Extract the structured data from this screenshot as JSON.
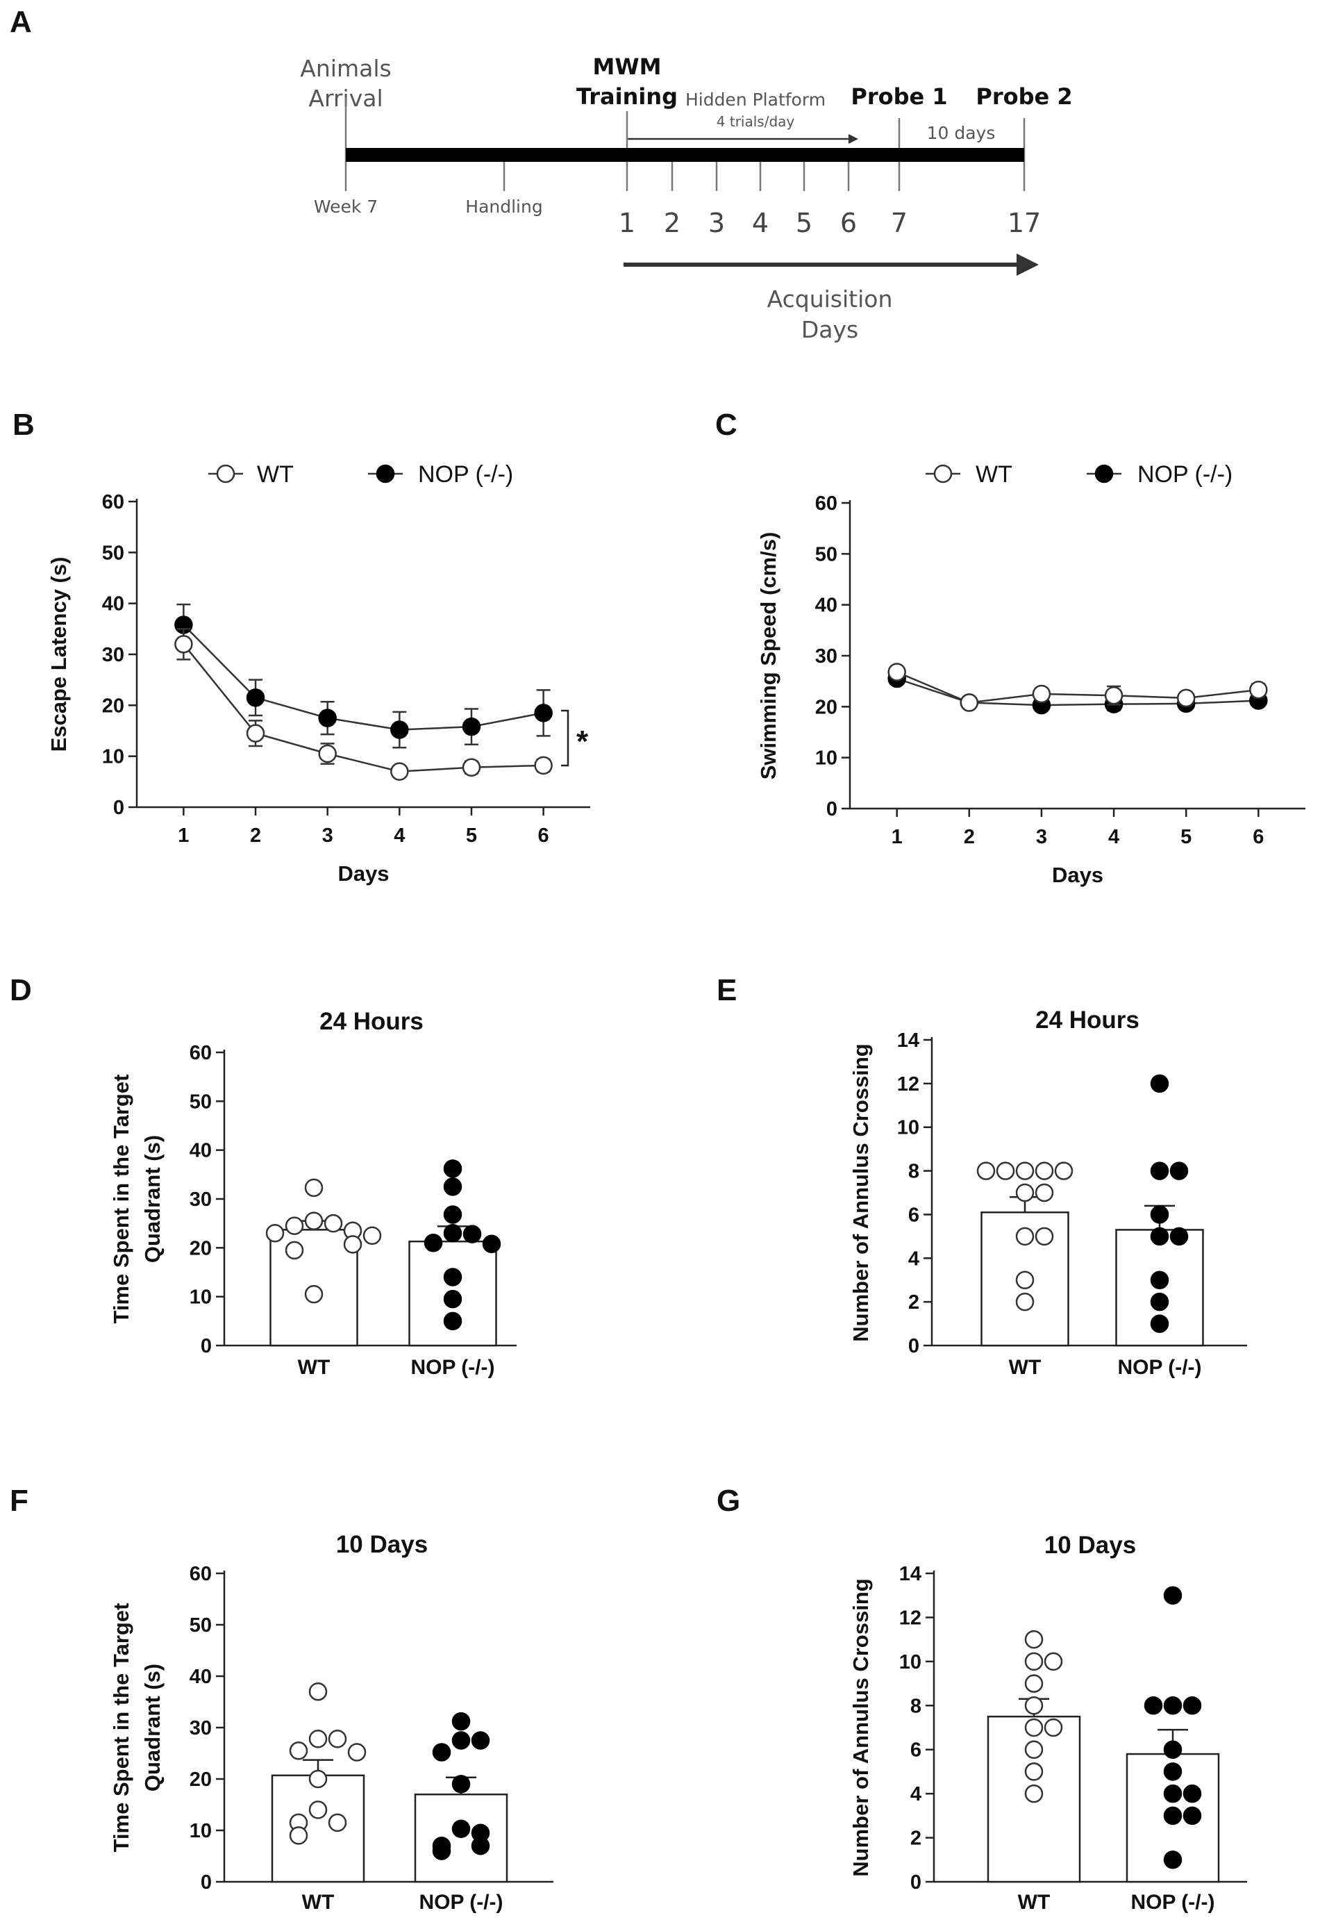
{
  "panel_labels": [
    "A",
    "B",
    "C",
    "D",
    "E",
    "F",
    "G"
  ],
  "timeline": {
    "animals_arrival": [
      "Animals",
      "Arrival"
    ],
    "mwm_training": [
      "MWM",
      "Training"
    ],
    "hidden_platform": "Hidden Platform",
    "trials_per_day": "4 trials/day",
    "probe1": "Probe 1",
    "probe2": "Probe 2",
    "ten_days": "10 days",
    "week7": "Week 7",
    "handling": "Handling",
    "day_ticks": [
      "1",
      "2",
      "3",
      "4",
      "5",
      "6",
      "7",
      "17"
    ],
    "acquisition": [
      "Acquisition",
      "Days"
    ]
  },
  "legend": {
    "wt": "WT",
    "nop": "NOP (-/-)"
  },
  "colors": {
    "nop_fill": "#000000",
    "wt_fill": "#ffffff",
    "line": "#333333"
  },
  "chart_data": [
    {
      "panel": "B",
      "type": "line",
      "ylabel": "Escape Latency (s)",
      "xlabel": "Days",
      "x": [
        1,
        2,
        3,
        4,
        5,
        6
      ],
      "ylim": [
        0,
        60
      ],
      "yticks": [
        0,
        10,
        20,
        30,
        40,
        50,
        60
      ],
      "significance": "*",
      "series": [
        {
          "name": "WT",
          "values": [
            32,
            14.5,
            10.5,
            7,
            7.8,
            8.2
          ],
          "sem": [
            3,
            2.5,
            2,
            0.8,
            1.2,
            1.2
          ]
        },
        {
          "name": "NOP (-/-)",
          "values": [
            35.8,
            21.5,
            17.5,
            15.2,
            15.8,
            18.5
          ],
          "sem": [
            4,
            3.5,
            3.2,
            3.5,
            3.5,
            4.5
          ]
        }
      ]
    },
    {
      "panel": "C",
      "type": "line",
      "ylabel": "Swimming Speed (cm/s)",
      "xlabel": "Days",
      "x": [
        1,
        2,
        3,
        4,
        5,
        6
      ],
      "ylim": [
        0,
        60
      ],
      "yticks": [
        0,
        10,
        20,
        30,
        40,
        50,
        60
      ],
      "series": [
        {
          "name": "WT",
          "values": [
            26.8,
            20.8,
            22.5,
            22.2,
            21.7,
            23.3
          ],
          "sem": [
            0.8,
            0.5,
            0.8,
            1.8,
            0.8,
            1.2
          ]
        },
        {
          "name": "NOP (-/-)",
          "values": [
            25.5,
            20.8,
            20.3,
            20.5,
            20.6,
            21.2
          ],
          "sem": [
            0.6,
            0.5,
            0.6,
            1.2,
            0.6,
            0.8
          ]
        }
      ]
    },
    {
      "panel": "D",
      "type": "scatter",
      "title": "24 Hours",
      "ylabel": [
        "Time Spent in the Target",
        "Quadrant (s)"
      ],
      "categories": [
        "WT",
        "NOP (-/-)"
      ],
      "ylim": [
        0,
        60
      ],
      "yticks": [
        0,
        10,
        20,
        30,
        40,
        50,
        60
      ],
      "means": [
        23.7,
        21.3
      ],
      "sem": [
        1.8,
        3.1
      ],
      "points": [
        [
          32.3,
          25.5,
          25.0,
          24.5,
          23.5,
          23.0,
          22.5,
          20.7,
          19.5,
          10.5
        ],
        [
          36.2,
          32.5,
          26.8,
          23.0,
          22.8,
          21.0,
          20.8,
          14.0,
          9.5,
          5.0
        ]
      ]
    },
    {
      "panel": "E",
      "type": "scatter",
      "title": "24 Hours",
      "ylabel": "Number of Annulus Crossing",
      "categories": [
        "WT",
        "NOP (-/-)"
      ],
      "ylim": [
        0,
        14
      ],
      "yticks": [
        0,
        2,
        4,
        6,
        8,
        10,
        12,
        14
      ],
      "means": [
        6.1,
        5.3
      ],
      "sem": [
        0.7,
        1.1
      ],
      "points": [
        [
          8,
          8,
          8,
          8,
          8,
          7,
          7,
          5,
          5,
          3,
          2
        ],
        [
          12,
          8,
          8,
          6,
          5,
          5,
          3,
          2,
          1
        ]
      ]
    },
    {
      "panel": "F",
      "type": "scatter",
      "title": "10 Days",
      "ylabel": [
        "Time Spent in the Target",
        "Quadrant (s)"
      ],
      "categories": [
        "WT",
        "NOP (-/-)"
      ],
      "ylim": [
        0,
        60
      ],
      "yticks": [
        0,
        10,
        20,
        30,
        40,
        50,
        60
      ],
      "means": [
        20.7,
        17.0
      ],
      "sem": [
        3.0,
        3.3
      ],
      "points": [
        [
          37.0,
          27.8,
          27.8,
          25.5,
          25.2,
          20.0,
          14.0,
          11.5,
          11.5,
          9.0
        ],
        [
          31.2,
          27.5,
          27.5,
          25.2,
          19.0,
          10.3,
          9.5,
          7.0,
          7.0,
          6.0
        ]
      ]
    },
    {
      "panel": "G",
      "type": "scatter",
      "title": "10 Days",
      "ylabel": "Number of Annulus Crossing",
      "categories": [
        "WT",
        "NOP (-/-)"
      ],
      "ylim": [
        0,
        14
      ],
      "yticks": [
        0,
        2,
        4,
        6,
        8,
        10,
        12,
        14
      ],
      "means": [
        7.5,
        5.8
      ],
      "sem": [
        0.8,
        1.1
      ],
      "points": [
        [
          11,
          10,
          10,
          9,
          8,
          7,
          7,
          6,
          5,
          4
        ],
        [
          13,
          8,
          8,
          8,
          6,
          5,
          4,
          4,
          3,
          3,
          1
        ]
      ]
    }
  ]
}
